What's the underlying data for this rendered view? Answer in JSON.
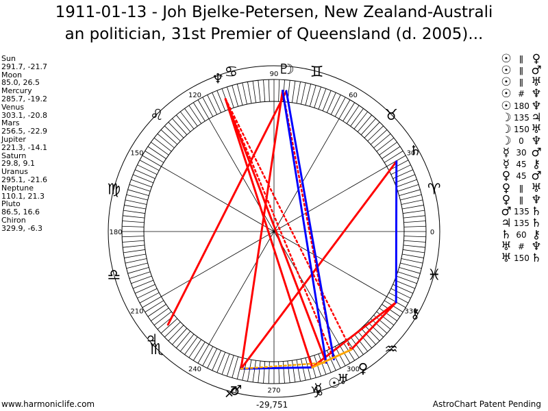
{
  "title": {
    "line1": "1911-01-13 - Joh Bjelke-Petersen, New Zealand-Australi",
    "line2": "an politician, 31st Premier of Queensland (d. 2005)..."
  },
  "positions": [
    {
      "name": "Sun",
      "value": "291.7, -21.7"
    },
    {
      "name": "Moon",
      "value": "85.0, 26.5"
    },
    {
      "name": "Mercury",
      "value": "285.7, -19.2"
    },
    {
      "name": "Venus",
      "value": "303.1, -20.8"
    },
    {
      "name": "Mars",
      "value": "256.5, -22.9"
    },
    {
      "name": "Jupiter",
      "value": "221.3, -14.1"
    },
    {
      "name": "Saturn",
      "value": "29.8, 9.1"
    },
    {
      "name": "Uranus",
      "value": "295.1, -21.6"
    },
    {
      "name": "Neptune",
      "value": "110.1, 21.3"
    },
    {
      "name": "Pluto",
      "value": "86.5, 16.6"
    },
    {
      "name": "Chiron",
      "value": "329.9, -6.3"
    }
  ],
  "aspects": [
    {
      "p1": "☉",
      "type": "ǁ",
      "p2": "♀"
    },
    {
      "p1": "☉",
      "type": "ǁ",
      "p2": "♂"
    },
    {
      "p1": "☉",
      "type": "ǁ",
      "p2": "♅"
    },
    {
      "p1": "☉",
      "type": "#",
      "p2": "♆"
    },
    {
      "p1": "☉",
      "type": "180",
      "p2": "♆"
    },
    {
      "p1": "☽",
      "type": "135",
      "p2": "♃"
    },
    {
      "p1": "☽",
      "type": "150",
      "p2": "♅"
    },
    {
      "p1": "☽",
      "type": "0",
      "p2": "♆"
    },
    {
      "p1": "☿",
      "type": "30",
      "p2": "♂"
    },
    {
      "p1": "☿",
      "type": "45",
      "p2": "⚷"
    },
    {
      "p1": "♀",
      "type": "45",
      "p2": "♂"
    },
    {
      "p1": "♀",
      "type": "ǁ",
      "p2": "♅"
    },
    {
      "p1": "♀",
      "type": "ǁ",
      "p2": "♆"
    },
    {
      "p1": "♂",
      "type": "135",
      "p2": "♄"
    },
    {
      "p1": "♃",
      "type": "135",
      "p2": "♄"
    },
    {
      "p1": "♄",
      "type": "60",
      "p2": "⚷"
    },
    {
      "p1": "♅",
      "type": "#",
      "p2": "♆"
    },
    {
      "p1": "♅",
      "type": "150",
      "p2": "♄"
    }
  ],
  "wheel": {
    "degree_labels": [
      "0",
      "30",
      "60",
      "90",
      "120",
      "150",
      "180",
      "210",
      "240",
      "270",
      "300",
      "330"
    ],
    "signs": [
      {
        "name": "aries",
        "glyph": "♈"
      },
      {
        "name": "taurus",
        "glyph": "♉"
      },
      {
        "name": "gemini",
        "glyph": "♊"
      },
      {
        "name": "cancer",
        "glyph": "♋"
      },
      {
        "name": "leo",
        "glyph": "♌"
      },
      {
        "name": "virgo",
        "glyph": "♍"
      },
      {
        "name": "libra",
        "glyph": "♎"
      },
      {
        "name": "scorpio",
        "glyph": "♏"
      },
      {
        "name": "sagittarius",
        "glyph": "♐"
      },
      {
        "name": "capricorn",
        "glyph": "♑"
      },
      {
        "name": "aquarius",
        "glyph": "♒"
      },
      {
        "name": "pisces",
        "glyph": "♓"
      }
    ],
    "planets": [
      {
        "name": "sun",
        "glyph": "☉",
        "lon": 291.7
      },
      {
        "name": "moon",
        "glyph": "☽",
        "lon": 85.0
      },
      {
        "name": "mercury",
        "glyph": "☿",
        "lon": 285.7
      },
      {
        "name": "venus",
        "glyph": "♀",
        "lon": 303.1
      },
      {
        "name": "mars",
        "glyph": "♂",
        "lon": 256.5
      },
      {
        "name": "jupiter",
        "glyph": "♃",
        "lon": 221.3
      },
      {
        "name": "saturn",
        "glyph": "♄",
        "lon": 29.8
      },
      {
        "name": "uranus",
        "glyph": "♅",
        "lon": 295.1
      },
      {
        "name": "neptune",
        "glyph": "♆",
        "lon": 110.1
      },
      {
        "name": "pluto",
        "glyph": "♇",
        "lon": 86.5
      },
      {
        "name": "chiron",
        "glyph": "⚷",
        "lon": 329.9
      }
    ],
    "aspect_lines": [
      {
        "from": 110.1,
        "to": 291.7,
        "color": "#ff0000",
        "style": "solid"
      },
      {
        "from": 110.1,
        "to": 285.7,
        "color": "#ff0000",
        "style": "solid"
      },
      {
        "from": 85.0,
        "to": 221.3,
        "color": "#ff0000",
        "style": "solid"
      },
      {
        "from": 86.5,
        "to": 256.5,
        "color": "#ff0000",
        "style": "solid"
      },
      {
        "from": 29.8,
        "to": 256.5,
        "color": "#ff0000",
        "style": "solid"
      },
      {
        "from": 110.1,
        "to": 295.1,
        "color": "#ff0000",
        "style": "dotted"
      },
      {
        "from": 110.1,
        "to": 303.1,
        "color": "#ff0000",
        "style": "dotted"
      },
      {
        "from": 86.5,
        "to": 295.1,
        "color": "#ff0000",
        "style": "dotted"
      },
      {
        "from": 285.7,
        "to": 329.9,
        "color": "#ff0000",
        "style": "solid"
      },
      {
        "from": 303.1,
        "to": 329.9,
        "color": "#ff0000",
        "style": "solid"
      },
      {
        "from": 85.0,
        "to": 295.1,
        "color": "#0000ff",
        "style": "solid"
      },
      {
        "from": 86.5,
        "to": 291.7,
        "color": "#0000ff",
        "style": "solid"
      },
      {
        "from": 29.8,
        "to": 329.9,
        "color": "#0000ff",
        "style": "solid"
      },
      {
        "from": 256.5,
        "to": 285.7,
        "color": "#0000ff",
        "style": "solid"
      },
      {
        "from": 256.5,
        "to": 291.7,
        "color": "#ffa500",
        "style": "dotted"
      },
      {
        "from": 285.7,
        "to": 303.1,
        "color": "#ffa500",
        "style": "solid"
      }
    ]
  },
  "footer": {
    "left": "www.harmoniclife.com",
    "center": "-29,751",
    "right": "AstroChart Patent Pending"
  }
}
